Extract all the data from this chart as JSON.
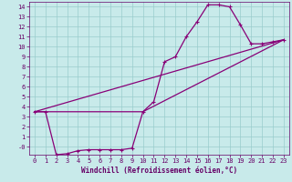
{
  "background_color": "#c8eaea",
  "grid_color": "#99cccc",
  "line_color": "#880077",
  "marker": "+",
  "markersize": 3,
  "linewidth": 0.9,
  "xlabel": "Windchill (Refroidissement éolien,°C)",
  "xlabel_fontsize": 5.5,
  "tick_fontsize": 5.0,
  "xlim": [
    -0.5,
    23.5
  ],
  "ylim": [
    -0.8,
    14.5
  ],
  "xticks": [
    0,
    1,
    2,
    3,
    4,
    5,
    6,
    7,
    8,
    9,
    10,
    11,
    12,
    13,
    14,
    15,
    16,
    17,
    18,
    19,
    20,
    21,
    22,
    23
  ],
  "yticks": [
    0,
    1,
    2,
    3,
    4,
    5,
    6,
    7,
    8,
    9,
    10,
    11,
    12,
    13,
    14
  ],
  "line1_x": [
    0,
    1,
    2,
    3,
    4,
    5,
    6,
    7,
    8,
    9,
    10,
    11,
    12,
    13,
    14,
    15,
    16,
    17,
    18,
    19,
    20,
    21,
    22,
    23
  ],
  "line1_y": [
    3.5,
    3.5,
    -0.8,
    -0.7,
    -0.4,
    -0.3,
    -0.3,
    -0.3,
    -0.3,
    -0.15,
    3.5,
    4.5,
    8.5,
    9.0,
    11.0,
    12.5,
    14.2,
    14.2,
    14.0,
    12.2,
    10.3,
    10.3,
    10.5,
    10.7
  ],
  "line2_x": [
    0,
    10,
    23
  ],
  "line2_y": [
    3.5,
    3.5,
    10.7
  ],
  "line3_x": [
    0,
    23
  ],
  "line3_y": [
    3.5,
    10.7
  ],
  "ylabel_neg0": "-0",
  "label_color": "#660066"
}
